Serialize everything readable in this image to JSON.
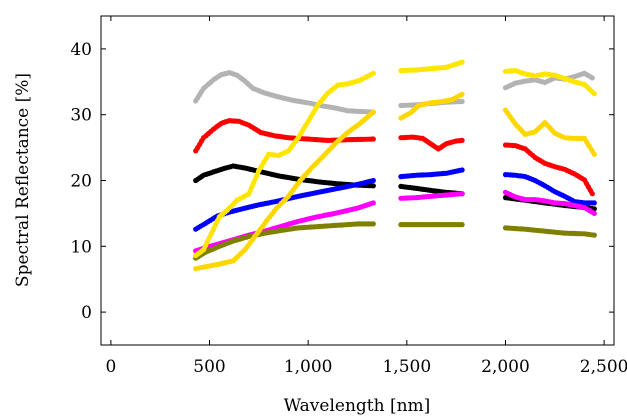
{
  "chart_data": {
    "type": "scatter",
    "xlabel": "Wavelength [nm]",
    "ylabel": "Spectral Reflectance [%]",
    "xlim": [
      -50,
      2550
    ],
    "ylim": [
      -5,
      45
    ],
    "x_ticks": [
      0,
      500,
      1000,
      1500,
      2000,
      2500
    ],
    "x_tick_labels": [
      "0",
      "500",
      "1,000",
      "1,500",
      "2,000",
      "2,500"
    ],
    "y_ticks": [
      0,
      10,
      20,
      30,
      40
    ],
    "y_tick_labels": [
      "0",
      "10",
      "20",
      "30",
      "40"
    ],
    "grid": false,
    "legend": "none",
    "series": [
      {
        "color": "#b3b3b3",
        "segments": [
          [
            [
              430,
              32.1
            ],
            [
              470,
              34.0
            ],
            [
              520,
              35.3
            ],
            [
              560,
              36.1
            ],
            [
              600,
              36.4
            ],
            [
              640,
              36.0
            ],
            [
              680,
              35.1
            ],
            [
              720,
              34.0
            ],
            [
              780,
              33.3
            ],
            [
              850,
              32.7
            ],
            [
              920,
              32.2
            ],
            [
              1000,
              31.8
            ],
            [
              1080,
              31.3
            ],
            [
              1140,
              31.0
            ],
            [
              1200,
              30.6
            ],
            [
              1260,
              30.5
            ],
            [
              1330,
              30.4
            ]
          ],
          [
            [
              1470,
              31.4
            ],
            [
              1550,
              31.5
            ],
            [
              1620,
              31.7
            ],
            [
              1700,
              31.9
            ],
            [
              1780,
              32.0
            ]
          ],
          [
            [
              2000,
              34.1
            ],
            [
              2050,
              34.8
            ],
            [
              2100,
              35.1
            ],
            [
              2150,
              35.3
            ],
            [
              2200,
              34.9
            ],
            [
              2250,
              35.6
            ],
            [
              2300,
              35.4
            ],
            [
              2350,
              35.8
            ],
            [
              2400,
              36.3
            ],
            [
              2440,
              35.6
            ]
          ]
        ]
      },
      {
        "color": "#ff0000",
        "segments": [
          [
            [
              430,
              24.5
            ],
            [
              470,
              26.5
            ],
            [
              520,
              27.8
            ],
            [
              560,
              28.7
            ],
            [
              600,
              29.1
            ],
            [
              650,
              29.0
            ],
            [
              700,
              28.4
            ],
            [
              760,
              27.3
            ],
            [
              830,
              26.8
            ],
            [
              900,
              26.5
            ],
            [
              1000,
              26.3
            ],
            [
              1100,
              26.1
            ],
            [
              1200,
              26.2
            ],
            [
              1330,
              26.3
            ]
          ],
          [
            [
              1470,
              26.5
            ],
            [
              1530,
              26.6
            ],
            [
              1580,
              26.4
            ],
            [
              1620,
              25.6
            ],
            [
              1660,
              24.8
            ],
            [
              1700,
              25.6
            ],
            [
              1750,
              26.0
            ],
            [
              1780,
              26.1
            ]
          ],
          [
            [
              2000,
              25.4
            ],
            [
              2050,
              25.3
            ],
            [
              2100,
              24.8
            ],
            [
              2150,
              23.5
            ],
            [
              2200,
              22.6
            ],
            [
              2250,
              22.1
            ],
            [
              2300,
              21.7
            ],
            [
              2350,
              21.0
            ],
            [
              2400,
              20.1
            ],
            [
              2440,
              18.0
            ]
          ]
        ]
      },
      {
        "color": "#000000",
        "segments": [
          [
            [
              430,
              20.0
            ],
            [
              470,
              20.8
            ],
            [
              520,
              21.3
            ],
            [
              570,
              21.8
            ],
            [
              620,
              22.2
            ],
            [
              680,
              21.9
            ],
            [
              750,
              21.4
            ],
            [
              850,
              20.7
            ],
            [
              950,
              20.2
            ],
            [
              1050,
              19.8
            ],
            [
              1150,
              19.5
            ],
            [
              1250,
              19.3
            ],
            [
              1330,
              19.2
            ]
          ],
          [
            [
              1470,
              19.1
            ],
            [
              1550,
              18.8
            ],
            [
              1620,
              18.5
            ],
            [
              1700,
              18.2
            ],
            [
              1780,
              18.0
            ]
          ],
          [
            [
              2000,
              17.4
            ],
            [
              2100,
              17.0
            ],
            [
              2200,
              16.6
            ],
            [
              2300,
              16.2
            ],
            [
              2400,
              15.9
            ],
            [
              2450,
              15.7
            ]
          ]
        ]
      },
      {
        "color": "#0000ff",
        "segments": [
          [
            [
              430,
              12.6
            ],
            [
              480,
              13.5
            ],
            [
              540,
              14.6
            ],
            [
              600,
              15.2
            ],
            [
              680,
              15.8
            ],
            [
              750,
              16.3
            ],
            [
              850,
              16.9
            ],
            [
              950,
              17.6
            ],
            [
              1050,
              18.2
            ],
            [
              1150,
              18.8
            ],
            [
              1250,
              19.4
            ],
            [
              1330,
              20.0
            ]
          ],
          [
            [
              1470,
              20.6
            ],
            [
              1550,
              20.8
            ],
            [
              1620,
              20.9
            ],
            [
              1700,
              21.1
            ],
            [
              1780,
              21.6
            ]
          ],
          [
            [
              2000,
              20.9
            ],
            [
              2050,
              20.8
            ],
            [
              2100,
              20.6
            ],
            [
              2150,
              20.0
            ],
            [
              2200,
              19.2
            ],
            [
              2250,
              18.3
            ],
            [
              2300,
              17.6
            ],
            [
              2350,
              16.8
            ],
            [
              2400,
              16.6
            ],
            [
              2450,
              16.6
            ]
          ]
        ]
      },
      {
        "color": "#ff00ff",
        "segments": [
          [
            [
              430,
              9.3
            ],
            [
              480,
              9.8
            ],
            [
              550,
              10.4
            ],
            [
              620,
              11.0
            ],
            [
              700,
              11.7
            ],
            [
              780,
              12.3
            ],
            [
              860,
              13.0
            ],
            [
              950,
              13.8
            ],
            [
              1050,
              14.5
            ],
            [
              1150,
              15.1
            ],
            [
              1250,
              15.8
            ],
            [
              1330,
              16.6
            ]
          ],
          [
            [
              1470,
              17.3
            ],
            [
              1550,
              17.4
            ],
            [
              1620,
              17.6
            ],
            [
              1700,
              17.8
            ],
            [
              1780,
              18.0
            ]
          ],
          [
            [
              2000,
              18.2
            ],
            [
              2050,
              17.5
            ],
            [
              2100,
              17.1
            ],
            [
              2150,
              17.1
            ],
            [
              2200,
              16.9
            ],
            [
              2250,
              16.6
            ],
            [
              2300,
              16.5
            ],
            [
              2350,
              16.2
            ],
            [
              2400,
              15.9
            ],
            [
              2450,
              15.0
            ]
          ]
        ]
      },
      {
        "color": "#808000",
        "segments": [
          [
            [
              430,
              8.2
            ],
            [
              480,
              9.1
            ],
            [
              550,
              10.0
            ],
            [
              620,
              10.8
            ],
            [
              700,
              11.5
            ],
            [
              780,
              12.0
            ],
            [
              860,
              12.4
            ],
            [
              950,
              12.8
            ],
            [
              1050,
              13.0
            ],
            [
              1150,
              13.2
            ],
            [
              1250,
              13.4
            ],
            [
              1330,
              13.4
            ]
          ],
          [
            [
              1470,
              13.3
            ],
            [
              1550,
              13.3
            ],
            [
              1620,
              13.3
            ],
            [
              1700,
              13.3
            ],
            [
              1780,
              13.3
            ]
          ],
          [
            [
              2000,
              12.8
            ],
            [
              2100,
              12.6
            ],
            [
              2200,
              12.3
            ],
            [
              2300,
              12.0
            ],
            [
              2400,
              11.9
            ],
            [
              2450,
              11.7
            ]
          ]
        ]
      },
      {
        "color": "#ffd700",
        "segments": [
          [
            [
              430,
              6.6
            ],
            [
              480,
              6.9
            ],
            [
              550,
              7.3
            ],
            [
              620,
              7.8
            ],
            [
              680,
              9.5
            ],
            [
              730,
              11.5
            ],
            [
              780,
              13.5
            ],
            [
              840,
              15.8
            ],
            [
              900,
              17.6
            ],
            [
              960,
              20.0
            ],
            [
              1020,
              22.0
            ],
            [
              1080,
              23.8
            ],
            [
              1140,
              25.7
            ],
            [
              1200,
              27.3
            ],
            [
              1260,
              28.6
            ],
            [
              1330,
              30.4
            ]
          ],
          [
            [
              1470,
              29.5
            ],
            [
              1520,
              30.3
            ],
            [
              1560,
              31.4
            ],
            [
              1620,
              31.8
            ],
            [
              1680,
              32.0
            ],
            [
              1730,
              32.3
            ],
            [
              1780,
              33.1
            ]
          ],
          [
            [
              2000,
              30.7
            ],
            [
              2050,
              28.6
            ],
            [
              2100,
              27.0
            ],
            [
              2150,
              27.4
            ],
            [
              2200,
              28.8
            ],
            [
              2250,
              27.2
            ],
            [
              2300,
              26.5
            ],
            [
              2350,
              26.4
            ],
            [
              2400,
              26.4
            ],
            [
              2450,
              24.0
            ]
          ]
        ]
      },
      {
        "color": "#ffe600",
        "segments": [
          [
            [
              430,
              8.6
            ],
            [
              470,
              9.5
            ],
            [
              510,
              12.0
            ],
            [
              550,
              14.5
            ],
            [
              590,
              15.5
            ],
            [
              640,
              17.0
            ],
            [
              700,
              18.0
            ],
            [
              750,
              21.5
            ],
            [
              800,
              24.0
            ],
            [
              850,
              23.8
            ],
            [
              900,
              24.5
            ],
            [
              950,
              26.5
            ],
            [
              1000,
              29.0
            ],
            [
              1050,
              31.5
            ],
            [
              1100,
              33.3
            ],
            [
              1150,
              34.5
            ],
            [
              1200,
              34.7
            ],
            [
              1260,
              35.2
            ],
            [
              1330,
              36.3
            ]
          ],
          [
            [
              1470,
              36.7
            ],
            [
              1550,
              36.8
            ],
            [
              1620,
              37.0
            ],
            [
              1700,
              37.2
            ],
            [
              1780,
              38.0
            ]
          ],
          [
            [
              2000,
              36.6
            ],
            [
              2050,
              36.7
            ],
            [
              2100,
              36.2
            ],
            [
              2150,
              35.9
            ],
            [
              2200,
              36.2
            ],
            [
              2250,
              36.0
            ],
            [
              2300,
              35.5
            ],
            [
              2350,
              35.0
            ],
            [
              2400,
              34.6
            ],
            [
              2450,
              33.2
            ]
          ]
        ]
      }
    ]
  }
}
